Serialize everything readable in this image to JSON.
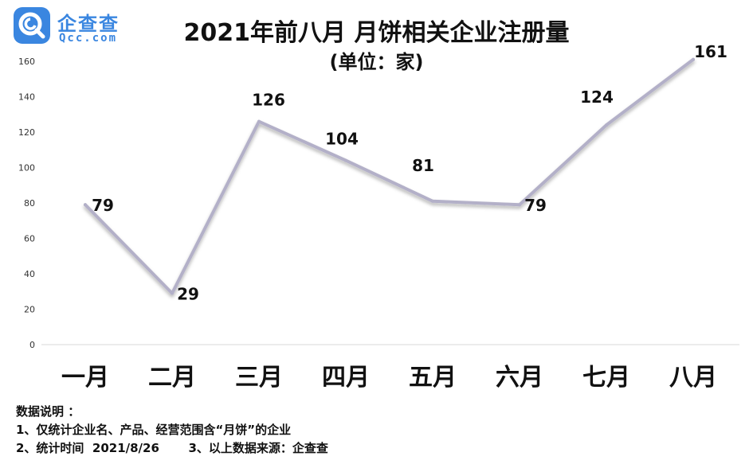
{
  "logo": {
    "name_cn": "企查查",
    "name_en": "Qcc.com"
  },
  "chart_data": {
    "type": "line",
    "title": "2021年前八月 月饼相关企业注册量",
    "subtitle": "(单位：家)",
    "categories": [
      "一月",
      "二月",
      "三月",
      "四月",
      "五月",
      "六月",
      "七月",
      "八月"
    ],
    "values": [
      79,
      29,
      126,
      104,
      81,
      79,
      124,
      161
    ],
    "data_labels": [
      "79",
      "29",
      "126",
      "104",
      "81",
      "79",
      "124",
      "161"
    ],
    "y_ticks": [
      "0",
      "20",
      "40",
      "60",
      "80",
      "100",
      "120",
      "140",
      "160"
    ],
    "ylim": [
      0,
      160
    ],
    "grid": false,
    "legend": "none",
    "line_color": "#b3b0c8"
  },
  "notes": {
    "heading": "数据说明 ：",
    "line1": "1、仅统计企业名、产品、经营范围含“月饼”的企业",
    "line2": "2、统计时间  2021/8/26       3、以上数据来源：企查查"
  }
}
